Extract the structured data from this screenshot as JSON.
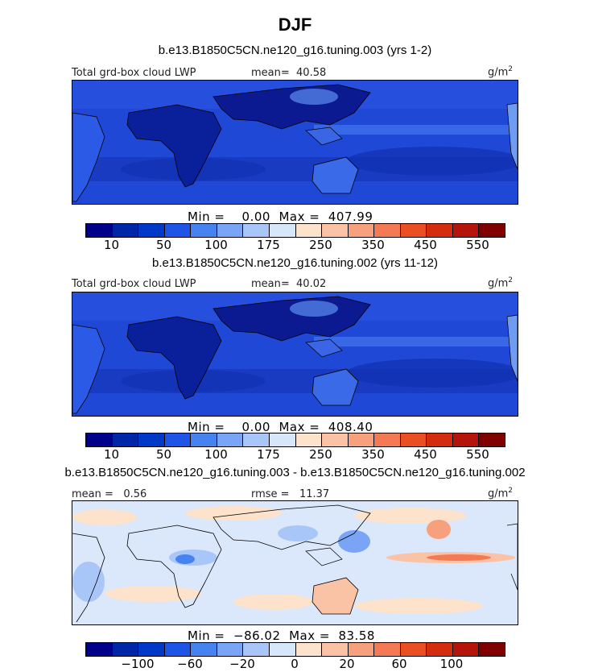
{
  "page": {
    "title": "DJF"
  },
  "palettes": {
    "abs": [
      "#00008b",
      "#0026a8",
      "#0038c8",
      "#1f55e6",
      "#4682f0",
      "#7aa4f5",
      "#a9c6f8",
      "#d6e6fb",
      "#fde2cc",
      "#fbc3a5",
      "#f7a07d",
      "#f37a55",
      "#ea4e23",
      "#d42c0f",
      "#b4140a",
      "#800000"
    ],
    "diff": [
      "#00008b",
      "#0026a8",
      "#0038c8",
      "#1f55e6",
      "#4682f0",
      "#7aa4f5",
      "#a9c6f8",
      "#d6e6fb",
      "#fde2cc",
      "#fbc3a5",
      "#f7a07d",
      "#f37a55",
      "#ea4e23",
      "#d42c0f",
      "#b4140a",
      "#800000"
    ]
  },
  "chart_data": [
    {
      "type": "heatmap",
      "title": "b.e13.B1850C5CN.ne120_g16.tuning.003 (yrs 1-2)",
      "field_label": "Total grd-box cloud LWP",
      "mean_label": "mean=",
      "mean": "40.58",
      "units": "g/m",
      "units_sup": "2",
      "min_label": "Min =",
      "min": "0.00",
      "max_label": "Max =",
      "max": "407.99",
      "colorbar_ticks": [
        "10",
        "50",
        "100",
        "175",
        "250",
        "350",
        "450",
        "550"
      ],
      "palette": "abs",
      "map_tint": "#1e46d0"
    },
    {
      "type": "heatmap",
      "title": "b.e13.B1850C5CN.ne120_g16.tuning.002 (yrs 11-12)",
      "field_label": "Total grd-box cloud LWP",
      "mean_label": "mean=",
      "mean": "40.02",
      "units": "g/m",
      "units_sup": "2",
      "min_label": "Min =",
      "min": "0.00",
      "max_label": "Max =",
      "max": "408.40",
      "colorbar_ticks": [
        "10",
        "50",
        "100",
        "175",
        "250",
        "350",
        "450",
        "550"
      ],
      "palette": "abs",
      "map_tint": "#1e46d0"
    },
    {
      "type": "heatmap",
      "title": "b.e13.B1850C5CN.ne120_g16.tuning.003 - b.e13.B1850C5CN.ne120_g16.tuning.002",
      "mean_label": "mean =",
      "mean": "0.56",
      "rmse_label": "rmse =",
      "rmse": "11.37",
      "units": "g/m",
      "units_sup": "2",
      "min_label": "Min =",
      "min": "−86.02",
      "max_label": "Max =",
      "max": "83.58",
      "colorbar_ticks": [
        "−100",
        "−60",
        "−20",
        "0",
        "20",
        "60",
        "100"
      ],
      "palette": "diff",
      "map_tint": "#dde8fb"
    }
  ]
}
